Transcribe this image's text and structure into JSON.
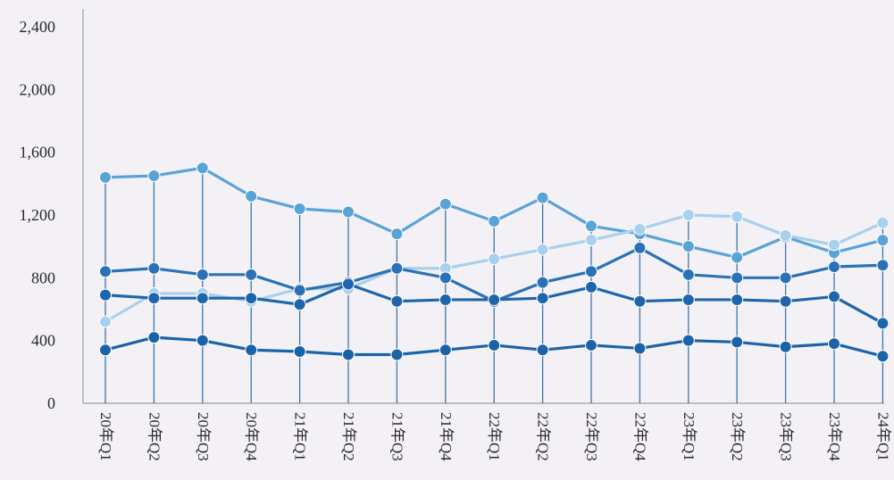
{
  "chart_data": {
    "type": "line",
    "categories": [
      "20年Q1",
      "20年Q2",
      "20年Q3",
      "20年Q4",
      "21年Q1",
      "21年Q2",
      "21年Q3",
      "21年Q4",
      "22年Q1",
      "22年Q2",
      "22年Q3",
      "22年Q4",
      "23年Q1",
      "23年Q2",
      "23年Q3",
      "23年Q4",
      "24年Q1"
    ],
    "ylim": [
      0,
      2400
    ],
    "yticks": [
      0,
      400,
      800,
      1200,
      1600,
      2000,
      2400
    ],
    "ytick_labels": [
      "0",
      "400",
      "800",
      "1,200",
      "1,600",
      "2,000",
      "2,400"
    ],
    "grid": false,
    "legend": "none",
    "series": [
      {
        "color": "#5aa3d6",
        "values": [
          1440,
          1450,
          1500,
          1320,
          1240,
          1220,
          1080,
          1270,
          1160,
          1310,
          1130,
          1080,
          1000,
          930,
          1060,
          960,
          1040
        ]
      },
      {
        "color": "#a9d0ec",
        "values": [
          520,
          700,
          700,
          650,
          730,
          730,
          860,
          860,
          920,
          980,
          1040,
          1110,
          1200,
          1190,
          1070,
          1010,
          1150
        ]
      },
      {
        "color": "#2a72b5",
        "values": [
          840,
          860,
          820,
          820,
          720,
          770,
          860,
          800,
          650,
          770,
          840,
          990,
          820,
          800,
          800,
          870,
          880
        ]
      },
      {
        "color": "#1e66ac",
        "values": [
          690,
          670,
          670,
          670,
          630,
          760,
          650,
          660,
          660,
          670,
          740,
          650,
          660,
          660,
          650,
          680,
          510
        ]
      },
      {
        "color": "#1b63a8",
        "values": [
          340,
          420,
          400,
          340,
          330,
          310,
          310,
          340,
          370,
          340,
          370,
          350,
          400,
          390,
          360,
          380,
          300
        ]
      }
    ]
  }
}
